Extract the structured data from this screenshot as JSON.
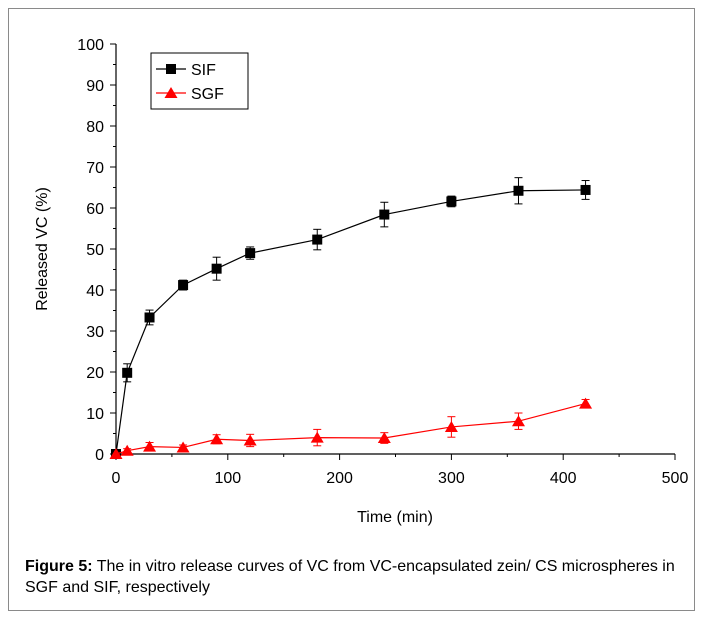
{
  "chart_data": {
    "type": "line",
    "xlabel": "Time (min)",
    "ylabel": "Released VC (%)",
    "xlim": [
      0,
      500
    ],
    "ylim": [
      0,
      100
    ],
    "xticks": [
      0,
      100,
      200,
      300,
      400,
      500
    ],
    "yticks": [
      0,
      10,
      20,
      30,
      40,
      50,
      60,
      70,
      80,
      90,
      100
    ],
    "grid": false,
    "legend_position": "top-left",
    "series": [
      {
        "name": "SIF",
        "color": "#000000",
        "marker": "square",
        "x": [
          0,
          10,
          30,
          60,
          90,
          120,
          180,
          240,
          300,
          360,
          420
        ],
        "y": [
          0,
          19.8,
          33.3,
          41.2,
          45.2,
          49.0,
          52.3,
          58.4,
          61.6,
          64.2,
          64.4
        ],
        "err": [
          0,
          2.2,
          1.8,
          1.2,
          2.8,
          1.5,
          2.5,
          3.0,
          1.3,
          3.2,
          2.3
        ]
      },
      {
        "name": "SGF",
        "color": "#ff0000",
        "marker": "triangle",
        "x": [
          0,
          10,
          30,
          60,
          90,
          120,
          180,
          240,
          300,
          360,
          420
        ],
        "y": [
          0,
          0.8,
          1.8,
          1.6,
          3.6,
          3.3,
          4.0,
          3.9,
          6.6,
          8.0,
          12.3
        ],
        "err": [
          0,
          0.5,
          1.0,
          0.6,
          1.1,
          1.5,
          2.0,
          1.3,
          2.5,
          2.0,
          1.0
        ]
      }
    ]
  },
  "caption": {
    "label": "Figure 5:",
    "text": " The in vitro release curves of VC from VC-encapsulated zein/ CS microspheres in SGF and SIF, respectively"
  }
}
